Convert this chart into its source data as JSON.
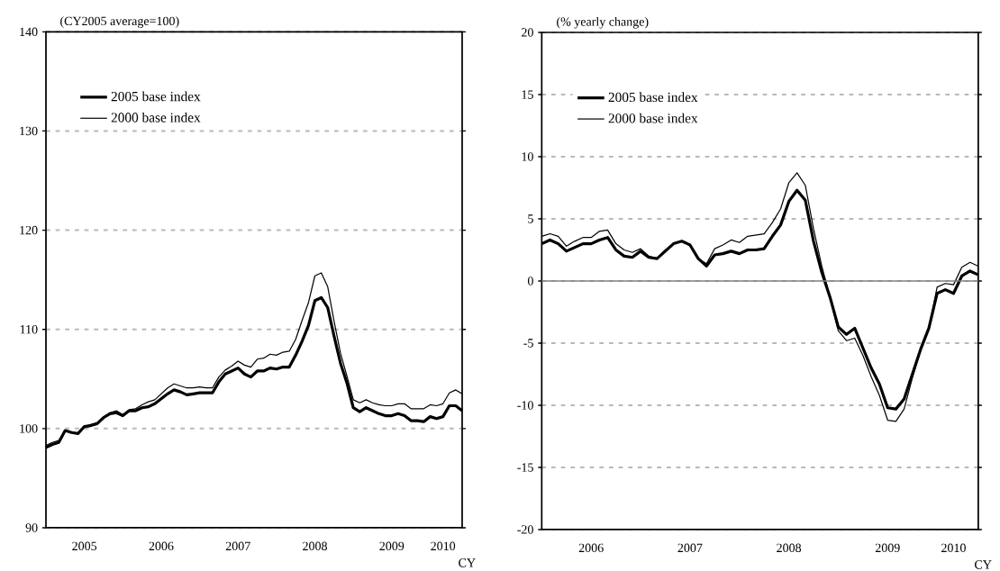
{
  "chart_data": [
    {
      "type": "line",
      "ylabel": "(CY2005 average=100)",
      "xlabel": "CY",
      "x": [
        "2005-01",
        "2005-02",
        "2005-03",
        "2005-04",
        "2005-05",
        "2005-06",
        "2005-07",
        "2005-08",
        "2005-09",
        "2005-10",
        "2005-11",
        "2005-12",
        "2006-01",
        "2006-02",
        "2006-03",
        "2006-04",
        "2006-05",
        "2006-06",
        "2006-07",
        "2006-08",
        "2006-09",
        "2006-10",
        "2006-11",
        "2006-12",
        "2007-01",
        "2007-02",
        "2007-03",
        "2007-04",
        "2007-05",
        "2007-06",
        "2007-07",
        "2007-08",
        "2007-09",
        "2007-10",
        "2007-11",
        "2007-12",
        "2008-01",
        "2008-02",
        "2008-03",
        "2008-04",
        "2008-05",
        "2008-06",
        "2008-07",
        "2008-08",
        "2008-09",
        "2008-10",
        "2008-11",
        "2008-12",
        "2009-01",
        "2009-02",
        "2009-03",
        "2009-04",
        "2009-05",
        "2009-06",
        "2009-07",
        "2009-08",
        "2009-09",
        "2009-10",
        "2009-11",
        "2009-12",
        "2010-01",
        "2010-02",
        "2010-03",
        "2010-04",
        "2010-05",
        "2010-06"
      ],
      "series": [
        {
          "name": "2005 base index",
          "color": "#000000",
          "values": [
            98.1,
            98.4,
            98.6,
            99.8,
            99.6,
            99.5,
            100.2,
            100.3,
            100.5,
            101.1,
            101.5,
            101.6,
            101.3,
            101.8,
            101.8,
            102.1,
            102.2,
            102.5,
            103.0,
            103.5,
            103.9,
            103.7,
            103.4,
            103.5,
            103.6,
            103.6,
            103.6,
            104.7,
            105.5,
            105.8,
            106.1,
            105.5,
            105.2,
            105.8,
            105.8,
            106.1,
            106.0,
            106.2,
            106.2,
            107.4,
            108.8,
            110.4,
            112.9,
            113.2,
            112.2,
            109.3,
            106.6,
            104.6,
            102.1,
            101.7,
            102.1,
            101.8,
            101.5,
            101.3,
            101.3,
            101.5,
            101.3,
            100.8,
            100.8,
            100.7,
            101.2,
            101.0,
            101.2,
            102.3,
            102.3,
            101.8
          ]
        },
        {
          "name": "2000 base index",
          "color": "#000000",
          "values": [
            98.3,
            98.6,
            98.8,
            99.8,
            99.6,
            99.5,
            100.2,
            100.4,
            100.6,
            101.2,
            101.6,
            101.8,
            101.4,
            101.9,
            102.0,
            102.4,
            102.7,
            102.9,
            103.5,
            104.1,
            104.5,
            104.3,
            104.1,
            104.1,
            104.2,
            104.1,
            104.1,
            105.2,
            105.9,
            106.3,
            106.8,
            106.4,
            106.2,
            107.0,
            107.1,
            107.5,
            107.4,
            107.7,
            107.8,
            109.0,
            110.9,
            112.7,
            115.4,
            115.7,
            114.3,
            110.8,
            107.6,
            105.3,
            102.9,
            102.6,
            102.9,
            102.6,
            102.4,
            102.3,
            102.3,
            102.5,
            102.5,
            102.0,
            102.0,
            102.0,
            102.4,
            102.3,
            102.5,
            103.6,
            103.9,
            103.5
          ]
        }
      ],
      "xlim": [
        "2005-01",
        "2010-06"
      ],
      "xticks": [
        {
          "value": "2005-07",
          "label": "2005"
        },
        {
          "value": "2006-07",
          "label": "2006"
        },
        {
          "value": "2007-07",
          "label": "2007"
        },
        {
          "value": "2008-07",
          "label": "2008"
        },
        {
          "value": "2009-07",
          "label": "2009"
        },
        {
          "value": "2010-03",
          "label": "2010"
        }
      ],
      "ylim": [
        90,
        140
      ],
      "yticks": [
        90,
        100,
        110,
        120,
        130,
        140
      ],
      "grid": "y",
      "legend": "top left",
      "marker": "none",
      "line_style": "solid"
    },
    {
      "type": "line",
      "ylabel": "(% yearly change)",
      "xlabel": "CY",
      "x": [
        "2006-01",
        "2006-02",
        "2006-03",
        "2006-04",
        "2006-05",
        "2006-06",
        "2006-07",
        "2006-08",
        "2006-09",
        "2006-10",
        "2006-11",
        "2006-12",
        "2007-01",
        "2007-02",
        "2007-03",
        "2007-04",
        "2007-05",
        "2007-06",
        "2007-07",
        "2007-08",
        "2007-09",
        "2007-10",
        "2007-11",
        "2007-12",
        "2008-01",
        "2008-02",
        "2008-03",
        "2008-04",
        "2008-05",
        "2008-06",
        "2008-07",
        "2008-08",
        "2008-09",
        "2008-10",
        "2008-11",
        "2008-12",
        "2009-01",
        "2009-02",
        "2009-03",
        "2009-04",
        "2009-05",
        "2009-06",
        "2009-07",
        "2009-08",
        "2009-09",
        "2009-10",
        "2009-11",
        "2009-12",
        "2010-01",
        "2010-02",
        "2010-03",
        "2010-04",
        "2010-05",
        "2010-06"
      ],
      "series": [
        {
          "name": "2005 base index",
          "color": "#000000",
          "values": [
            3.0,
            3.3,
            3.0,
            2.4,
            2.7,
            3.0,
            3.0,
            3.3,
            3.5,
            2.5,
            2.0,
            1.9,
            2.4,
            1.9,
            1.8,
            2.4,
            3.0,
            3.2,
            2.9,
            1.8,
            1.2,
            2.1,
            2.2,
            2.4,
            2.2,
            2.5,
            2.5,
            2.6,
            3.6,
            4.5,
            6.4,
            7.3,
            6.5,
            3.2,
            0.7,
            -1.3,
            -3.7,
            -4.3,
            -3.8,
            -5.4,
            -7.0,
            -8.3,
            -10.2,
            -10.3,
            -9.5,
            -7.5,
            -5.5,
            -3.8,
            -1.0,
            -0.7,
            -1.0,
            0.4,
            0.8,
            0.5
          ]
        },
        {
          "name": "2000 base index",
          "color": "#000000",
          "values": [
            3.6,
            3.8,
            3.6,
            2.8,
            3.2,
            3.5,
            3.5,
            4.0,
            4.1,
            3.0,
            2.5,
            2.3,
            2.6,
            2.0,
            1.8,
            2.5,
            3.0,
            3.2,
            2.9,
            1.8,
            1.4,
            2.6,
            2.9,
            3.3,
            3.1,
            3.6,
            3.7,
            3.8,
            4.7,
            5.8,
            7.9,
            8.7,
            7.7,
            4.2,
            1.2,
            -1.3,
            -4.0,
            -4.8,
            -4.6,
            -6.0,
            -7.7,
            -9.2,
            -11.2,
            -11.3,
            -10.3,
            -7.8,
            -5.6,
            -3.9,
            -0.5,
            -0.2,
            -0.3,
            1.1,
            1.5,
            1.2
          ]
        }
      ],
      "xlim": [
        "2006-01",
        "2010-06"
      ],
      "xticks": [
        {
          "value": "2006-07",
          "label": "2006"
        },
        {
          "value": "2007-07",
          "label": "2007"
        },
        {
          "value": "2008-07",
          "label": "2008"
        },
        {
          "value": "2009-07",
          "label": "2009"
        },
        {
          "value": "2010-03",
          "label": "2010"
        }
      ],
      "ylim": [
        -20,
        20
      ],
      "yticks": [
        -20,
        -15,
        -10,
        -5,
        0,
        5,
        10,
        15,
        20
      ],
      "ref_lines": [
        {
          "axis": "y",
          "value": 0,
          "color": "#808080",
          "line_style": "solid"
        }
      ],
      "grid": "y",
      "legend": "top left",
      "marker": "none",
      "line_style": "solid"
    }
  ]
}
